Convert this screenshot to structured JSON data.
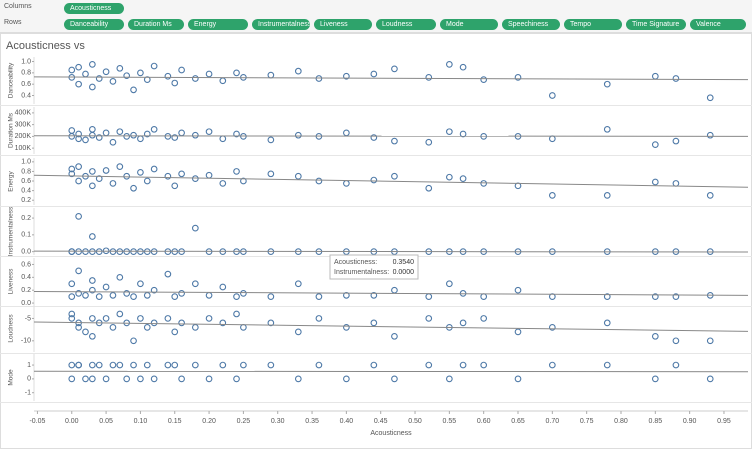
{
  "shelves": {
    "columns_label": "Columns",
    "columns": [
      "Acousticness"
    ],
    "rows_label": "Rows",
    "rows": [
      "Danceability",
      "Duration Ms",
      "Energy",
      "Instrumentalness",
      "Liveness",
      "Loudness",
      "Mode",
      "Speechiness",
      "Tempo",
      "Time Signature",
      "Valence"
    ]
  },
  "chart_data": {
    "type": "scatter",
    "title": "Acousticness vs",
    "x_label": "Acousticness",
    "color": "#4e79a7",
    "trend_color": "#888888",
    "xlim": [
      -0.055,
      0.985
    ],
    "xticks": [
      -0.05,
      {
        "value": 0,
        "label": "0.00"
      },
      0.05,
      {
        "value": 0.1,
        "label": "0.10"
      },
      0.15,
      {
        "value": 0.2,
        "label": "0.20"
      },
      0.25,
      {
        "value": 0.3,
        "label": "0.30"
      },
      0.35,
      {
        "value": 0.4,
        "label": "0.40"
      },
      0.45,
      {
        "value": 0.5,
        "label": "0.50"
      },
      0.55,
      {
        "value": 0.6,
        "label": "0.60"
      },
      0.65,
      {
        "value": 0.7,
        "label": "0.70"
      },
      0.75,
      {
        "value": 0.8,
        "label": "0.80"
      },
      0.85,
      {
        "value": 0.9,
        "label": "0.90"
      },
      0.95
    ],
    "x": [
      0.0,
      0.0,
      0.01,
      0.01,
      0.02,
      0.03,
      0.03,
      0.04,
      0.05,
      0.06,
      0.07,
      0.08,
      0.09,
      0.1,
      0.11,
      0.12,
      0.14,
      0.15,
      0.16,
      0.18,
      0.2,
      0.22,
      0.24,
      0.25,
      0.29,
      0.33,
      0.36,
      0.4,
      0.44,
      0.47,
      0.52,
      0.55,
      0.57,
      0.6,
      0.65,
      0.7,
      0.78,
      0.85,
      0.88,
      0.93
    ],
    "panels": [
      {
        "y_label": "Danceability",
        "ylim": [
          0.25,
          1.08
        ],
        "yticks": [
          0.4,
          0.6,
          0.8,
          {
            "value": 1,
            "label": "1.0"
          }
        ],
        "trend": [
          0.73,
          0.68
        ],
        "values": [
          0.72,
          0.85,
          0.6,
          0.9,
          0.78,
          0.55,
          0.95,
          0.7,
          0.82,
          0.65,
          0.88,
          0.75,
          0.5,
          0.8,
          0.68,
          0.92,
          0.74,
          0.62,
          0.85,
          0.7,
          0.78,
          0.66,
          0.8,
          0.72,
          0.76,
          0.83,
          0.7,
          0.74,
          0.78,
          0.87,
          0.72,
          0.95,
          0.9,
          0.68,
          0.72,
          0.4,
          0.6,
          0.74,
          0.7,
          0.36
        ]
      },
      {
        "y_label": "Duration Ms",
        "ylim": [
          50000,
          450000
        ],
        "yticks": [
          {
            "value": 100000,
            "label": "100K"
          },
          {
            "value": 200000,
            "label": "200K"
          },
          {
            "value": 300000,
            "label": "300K"
          },
          {
            "value": 400000,
            "label": "400K"
          }
        ],
        "trend": [
          205000,
          200000
        ],
        "values": [
          200000,
          250000,
          180000,
          220000,
          170000,
          210000,
          260000,
          190000,
          230000,
          150000,
          240000,
          200000,
          210000,
          180000,
          220000,
          260000,
          200000,
          190000,
          230000,
          210000,
          240000,
          180000,
          220000,
          200000,
          170000,
          210000,
          200000,
          230000,
          190000,
          160000,
          150000,
          240000,
          220000,
          200000,
          200000,
          180000,
          260000,
          130000,
          160000,
          210000
        ]
      },
      {
        "y_label": "Energy",
        "ylim": [
          0.1,
          1.08
        ],
        "yticks": [
          0.2,
          0.4,
          0.6,
          0.8,
          {
            "value": 1,
            "label": "1.0"
          }
        ],
        "trend": [
          0.72,
          0.47
        ],
        "values": [
          0.75,
          0.85,
          0.6,
          0.9,
          0.7,
          0.5,
          0.8,
          0.65,
          0.82,
          0.55,
          0.9,
          0.7,
          0.45,
          0.78,
          0.6,
          0.85,
          0.7,
          0.5,
          0.75,
          0.65,
          0.72,
          0.55,
          0.8,
          0.6,
          0.75,
          0.7,
          0.6,
          0.55,
          0.62,
          0.7,
          0.45,
          0.68,
          0.65,
          0.55,
          0.5,
          0.3,
          0.3,
          0.58,
          0.55,
          0.3
        ]
      },
      {
        "y_label": "Instrumentalness",
        "ylim": [
          -0.02,
          0.26
        ],
        "yticks": [
          {
            "value": 0,
            "label": "0.0"
          },
          0.1,
          0.2
        ],
        "trend": [
          0.003,
          -0.002
        ],
        "values": [
          0,
          0,
          0.21,
          0,
          0,
          0.09,
          0,
          0,
          0.005,
          0,
          0,
          0,
          0,
          0,
          0,
          0,
          0,
          0,
          0,
          0.14,
          0,
          0,
          0,
          0,
          0,
          0,
          0,
          0,
          0,
          0,
          0,
          0,
          0,
          0,
          0,
          0,
          0,
          0,
          0,
          0
        ]
      },
      {
        "y_label": "Liveness",
        "ylim": [
          -0.03,
          0.7
        ],
        "yticks": [
          {
            "value": 0,
            "label": "0.0"
          },
          0.2,
          0.4,
          0.6
        ],
        "trend": [
          0.18,
          0.12
        ],
        "values": [
          0.1,
          0.3,
          0.15,
          0.5,
          0.12,
          0.2,
          0.35,
          0.1,
          0.25,
          0.12,
          0.4,
          0.15,
          0.1,
          0.3,
          0.12,
          0.2,
          0.45,
          0.1,
          0.15,
          0.3,
          0.12,
          0.25,
          0.1,
          0.15,
          0.1,
          0.3,
          0.1,
          0.12,
          0.12,
          0.2,
          0.1,
          0.3,
          0.15,
          0.1,
          0.2,
          0.1,
          0.1,
          0.1,
          0.1,
          0.12
        ]
      },
      {
        "y_label": "Loudness",
        "ylim": [
          -12.5,
          -2
        ],
        "yticks": [
          -5,
          -10
        ],
        "trend": [
          -5.8,
          -7.9
        ],
        "values": [
          -5,
          -4,
          -7,
          -6,
          -8,
          -5,
          -9,
          -6,
          -5,
          -7,
          -4,
          -6,
          -10,
          -5,
          -7,
          -6,
          -5,
          -8,
          -6,
          -7,
          -5,
          -6,
          -4,
          -7,
          -6,
          -8,
          -5,
          -7,
          -6,
          -9,
          -5,
          -7,
          -6,
          -5,
          -8,
          -7,
          -6,
          -9,
          -10,
          -10
        ]
      },
      {
        "y_label": "Mode",
        "ylim": [
          -1.6,
          1.8
        ],
        "yticks": [
          1,
          0,
          -1
        ],
        "trend": [
          0.55,
          0.52
        ],
        "values": [
          1,
          0,
          1,
          1,
          0,
          1,
          0,
          1,
          0,
          1,
          1,
          0,
          1,
          0,
          1,
          0,
          1,
          1,
          0,
          1,
          0,
          1,
          0,
          1,
          1,
          0,
          1,
          0,
          1,
          0,
          1,
          0,
          1,
          1,
          0,
          1,
          1,
          0,
          1,
          0
        ]
      }
    ],
    "tooltip": [
      {
        "label": "Acousticness:",
        "value": "0.3540"
      },
      {
        "label": "Instrumentalness:",
        "value": "0.0000"
      }
    ]
  }
}
